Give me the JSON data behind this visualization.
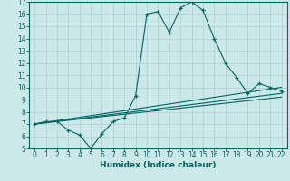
{
  "xlabel": "Humidex (Indice chaleur)",
  "bg_color": "#cce8e8",
  "grid_color": "#b5d5d5",
  "line_color": "#006666",
  "xlim": [
    -0.5,
    22.5
  ],
  "ylim": [
    5,
    17
  ],
  "xticks": [
    0,
    1,
    2,
    3,
    4,
    5,
    6,
    7,
    8,
    9,
    10,
    11,
    12,
    13,
    14,
    15,
    16,
    17,
    18,
    19,
    20,
    21,
    22
  ],
  "yticks": [
    5,
    6,
    7,
    8,
    9,
    10,
    11,
    12,
    13,
    14,
    15,
    16,
    17
  ],
  "line1_x": [
    0,
    1,
    2,
    3,
    4,
    5,
    6,
    7,
    8,
    9,
    10,
    11,
    12,
    13,
    14,
    15,
    16,
    17,
    18,
    19,
    20,
    21,
    22
  ],
  "line1_y": [
    7.0,
    7.2,
    7.2,
    6.5,
    6.1,
    5.0,
    6.2,
    7.2,
    7.5,
    9.3,
    16.0,
    16.2,
    14.5,
    16.5,
    17.0,
    16.3,
    14.0,
    12.0,
    10.8,
    9.5,
    10.3,
    10.0,
    9.7
  ],
  "line2_x": [
    0,
    22
  ],
  "line2_y": [
    7.0,
    10.0
  ],
  "line3_x": [
    0,
    22
  ],
  "line3_y": [
    7.0,
    9.5
  ],
  "line4_x": [
    0,
    22
  ],
  "line4_y": [
    7.0,
    9.2
  ]
}
